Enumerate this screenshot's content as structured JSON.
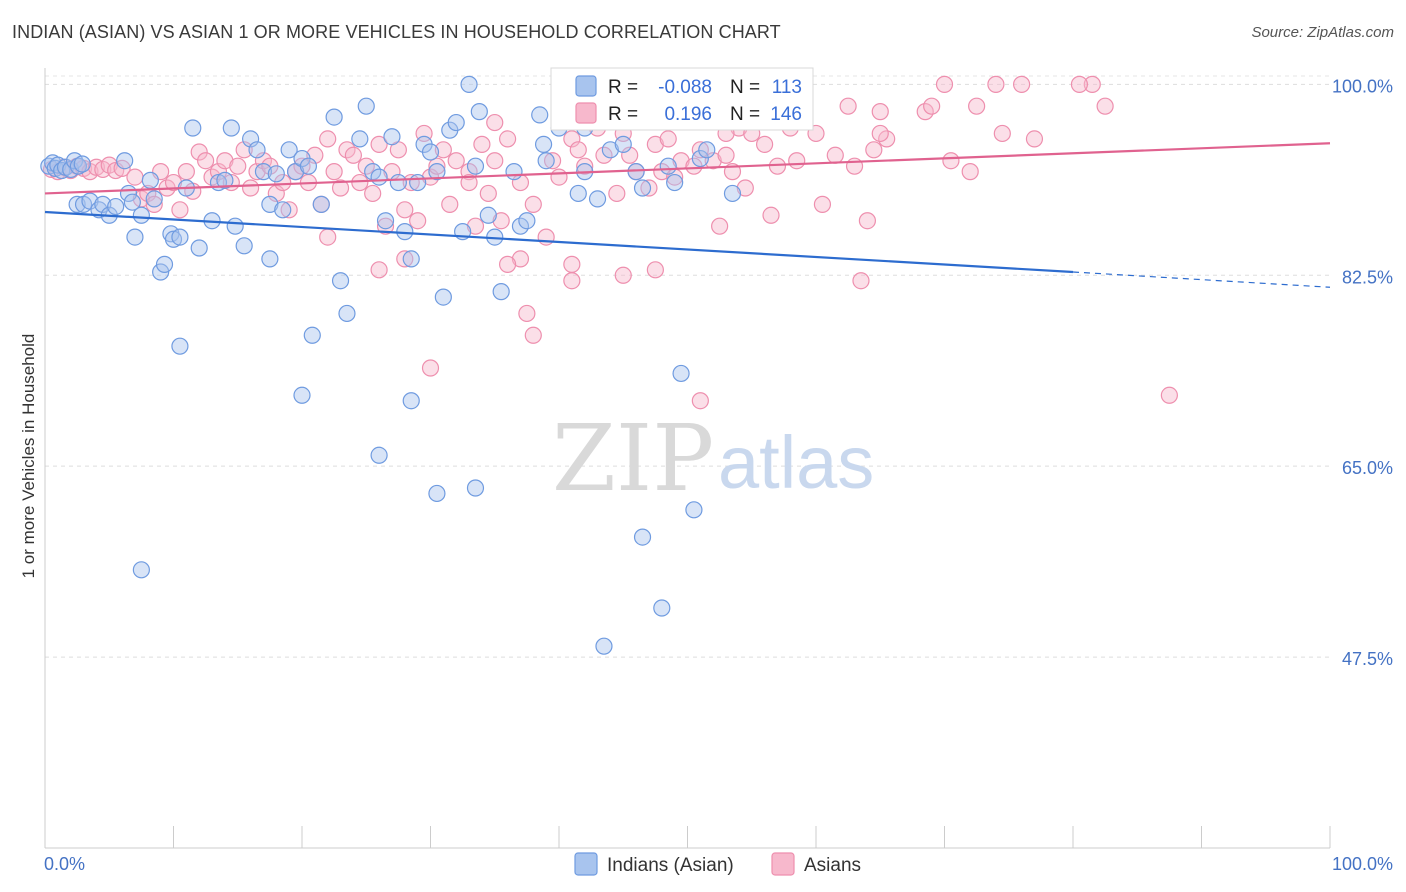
{
  "header": {
    "title": "INDIAN (ASIAN) VS ASIAN 1 OR MORE VEHICLES IN HOUSEHOLD CORRELATION CHART",
    "source": "Source: ZipAtlas.com"
  },
  "legend_box": {
    "r_label": "R =",
    "n_label": "N =",
    "blue": {
      "r": "-0.088",
      "n": "113"
    },
    "pink": {
      "r": "0.196",
      "n": "146"
    }
  },
  "watermark": {
    "zip": "ZIP",
    "atlas": "atlas"
  },
  "colors": {
    "blue_fill": "#a8c4ee",
    "blue_stroke": "#6f9be0",
    "blue_line": "#2d6ccf",
    "pink_fill": "#f7b8cc",
    "pink_stroke": "#ee8fae",
    "pink_line": "#e0628f",
    "grid": "#d8d8d8",
    "axis_label": "#4472c4"
  },
  "chart_data": {
    "type": "scatter",
    "title": "INDIAN (ASIAN) VS ASIAN 1 OR MORE VEHICLES IN HOUSEHOLD CORRELATION CHART",
    "xlabel": "",
    "ylabel": "1 or more Vehicles in Household",
    "xlim": [
      0,
      100
    ],
    "ylim": [
      30,
      101.5
    ],
    "x_tick_labels": [
      "0.0%",
      "100.0%"
    ],
    "y_ticks": [
      47.5,
      65.0,
      82.5,
      100.0
    ],
    "y_tick_labels": [
      "47.5%",
      "65.0%",
      "82.5%",
      "100.0%"
    ],
    "grid": true,
    "legend_position": "bottom-center",
    "series": [
      {
        "name": "Indians (Asian)",
        "color": "#a8c4ee",
        "trend": {
          "x0": 0,
          "y0": 88.3,
          "x1": 80,
          "y1": 82.8,
          "dashed_to_x": 100,
          "dashed_to_y": 81.4
        },
        "points": [
          [
            0.3,
            92.5
          ],
          [
            0.6,
            92.8
          ],
          [
            0.8,
            92.3
          ],
          [
            1.0,
            92.6
          ],
          [
            1.3,
            92.1
          ],
          [
            1.6,
            92.4
          ],
          [
            2.0,
            92.2
          ],
          [
            2.3,
            93.0
          ],
          [
            2.6,
            92.5
          ],
          [
            2.9,
            92.7
          ],
          [
            2.5,
            89.0
          ],
          [
            3.0,
            89.0
          ],
          [
            3.5,
            89.3
          ],
          [
            4.2,
            88.5
          ],
          [
            4.5,
            89.0
          ],
          [
            5.0,
            88.0
          ],
          [
            5.5,
            88.8
          ],
          [
            6.2,
            93.0
          ],
          [
            6.5,
            90.0
          ],
          [
            7.0,
            86.0
          ],
          [
            7.5,
            88.0
          ],
          [
            8.2,
            91.2
          ],
          [
            8.5,
            89.5
          ],
          [
            9.0,
            82.8
          ],
          [
            9.3,
            83.5
          ],
          [
            9.8,
            86.3
          ],
          [
            10.0,
            85.8
          ],
          [
            10.5,
            86.0
          ],
          [
            11.0,
            90.5
          ],
          [
            11.5,
            96.0
          ],
          [
            12.0,
            85.0
          ],
          [
            13.0,
            87.5
          ],
          [
            13.5,
            91.0
          ],
          [
            14.0,
            91.2
          ],
          [
            14.5,
            96.0
          ],
          [
            14.8,
            87.0
          ],
          [
            15.5,
            85.2
          ],
          [
            16.0,
            95.0
          ],
          [
            16.5,
            94.0
          ],
          [
            17.0,
            92.0
          ],
          [
            17.5,
            89.0
          ],
          [
            18.0,
            91.8
          ],
          [
            18.5,
            88.5
          ],
          [
            19.0,
            94.0
          ],
          [
            19.5,
            92.0
          ],
          [
            20.0,
            93.2
          ],
          [
            20.5,
            92.5
          ],
          [
            21.5,
            89.0
          ],
          [
            22.5,
            97.0
          ],
          [
            23.0,
            82.0
          ],
          [
            23.5,
            79.0
          ],
          [
            24.5,
            95.0
          ],
          [
            25.0,
            98.0
          ],
          [
            25.5,
            92.0
          ],
          [
            26.0,
            91.5
          ],
          [
            26.5,
            87.5
          ],
          [
            27.0,
            95.2
          ],
          [
            27.5,
            91.0
          ],
          [
            28.0,
            86.5
          ],
          [
            28.5,
            84.0
          ],
          [
            29.0,
            91.0
          ],
          [
            29.5,
            94.5
          ],
          [
            30.0,
            93.8
          ],
          [
            30.5,
            92.0
          ],
          [
            31.0,
            80.5
          ],
          [
            31.5,
            95.8
          ],
          [
            32.0,
            96.5
          ],
          [
            32.5,
            86.5
          ],
          [
            33.0,
            100.0
          ],
          [
            33.5,
            92.5
          ],
          [
            33.8,
            97.5
          ],
          [
            34.5,
            88.0
          ],
          [
            35.0,
            86.0
          ],
          [
            35.5,
            81.0
          ],
          [
            36.5,
            92.0
          ],
          [
            37.0,
            87.0
          ],
          [
            37.5,
            87.5
          ],
          [
            38.5,
            97.2
          ],
          [
            38.8,
            94.5
          ],
          [
            39.0,
            93.0
          ],
          [
            40.0,
            96.0
          ],
          [
            41.5,
            90.0
          ],
          [
            42.0,
            92.0
          ],
          [
            42.5,
            97.0
          ],
          [
            43.0,
            89.5
          ],
          [
            44.0,
            94.0
          ],
          [
            45.0,
            94.5
          ],
          [
            46.0,
            92.0
          ],
          [
            46.5,
            90.5
          ],
          [
            47.0,
            98.8
          ],
          [
            48.5,
            92.5
          ],
          [
            49.0,
            91.0
          ],
          [
            50.0,
            100.0
          ],
          [
            51.0,
            93.2
          ],
          [
            51.5,
            94.0
          ],
          [
            53.5,
            90.0
          ],
          [
            42.0,
            96.0
          ],
          [
            45.5,
            98.5
          ],
          [
            6.8,
            89.2
          ],
          [
            20.8,
            77.0
          ],
          [
            17.5,
            84.0
          ],
          [
            26.0,
            66.0
          ],
          [
            20.0,
            71.5
          ],
          [
            10.5,
            76.0
          ],
          [
            28.5,
            71.0
          ],
          [
            30.5,
            62.5
          ],
          [
            33.5,
            63.0
          ],
          [
            46.5,
            58.5
          ],
          [
            49.5,
            73.5
          ],
          [
            50.5,
            61.0
          ],
          [
            7.5,
            55.5
          ],
          [
            43.5,
            48.5
          ],
          [
            48.0,
            52.0
          ]
        ]
      },
      {
        "name": "Asians",
        "color": "#f7b8cc",
        "trend": {
          "x0": 0,
          "y0": 90.0,
          "x1": 100,
          "y1": 94.6
        },
        "points": [
          [
            0.5,
            92.2
          ],
          [
            1.0,
            92.0
          ],
          [
            1.5,
            92.4
          ],
          [
            2.0,
            92.1
          ],
          [
            2.5,
            92.5
          ],
          [
            3.0,
            92.3
          ],
          [
            3.5,
            92.0
          ],
          [
            4.0,
            92.4
          ],
          [
            4.5,
            92.2
          ],
          [
            5.0,
            92.6
          ],
          [
            5.5,
            92.1
          ],
          [
            6.0,
            92.3
          ],
          [
            7.0,
            91.5
          ],
          [
            7.5,
            89.5
          ],
          [
            8.0,
            90.0
          ],
          [
            8.5,
            89.0
          ],
          [
            9.0,
            92.0
          ],
          [
            9.5,
            90.5
          ],
          [
            10.0,
            91.0
          ],
          [
            10.5,
            88.5
          ],
          [
            11.0,
            92.0
          ],
          [
            11.5,
            90.2
          ],
          [
            12.0,
            93.8
          ],
          [
            12.5,
            93.0
          ],
          [
            13.0,
            91.5
          ],
          [
            13.5,
            92.0
          ],
          [
            14.0,
            93.0
          ],
          [
            14.5,
            91.0
          ],
          [
            15.0,
            92.5
          ],
          [
            15.5,
            94.0
          ],
          [
            16.0,
            90.5
          ],
          [
            16.5,
            92.0
          ],
          [
            17.0,
            93.0
          ],
          [
            17.5,
            92.5
          ],
          [
            18.0,
            90.0
          ],
          [
            18.5,
            91.0
          ],
          [
            19.0,
            88.5
          ],
          [
            19.5,
            92.0
          ],
          [
            20.0,
            92.5
          ],
          [
            20.5,
            91.0
          ],
          [
            21.0,
            93.5
          ],
          [
            21.5,
            89.0
          ],
          [
            22.0,
            95.0
          ],
          [
            22.5,
            92.0
          ],
          [
            23.0,
            90.5
          ],
          [
            23.5,
            94.0
          ],
          [
            24.0,
            93.5
          ],
          [
            24.5,
            91.0
          ],
          [
            25.0,
            92.5
          ],
          [
            25.5,
            90.0
          ],
          [
            26.0,
            94.5
          ],
          [
            26.5,
            87.0
          ],
          [
            27.0,
            92.0
          ],
          [
            27.5,
            94.0
          ],
          [
            28.0,
            88.5
          ],
          [
            28.5,
            91.0
          ],
          [
            29.0,
            87.5
          ],
          [
            29.5,
            95.5
          ],
          [
            30.0,
            91.5
          ],
          [
            30.5,
            92.5
          ],
          [
            31.0,
            94.0
          ],
          [
            31.5,
            89.0
          ],
          [
            32.0,
            93.0
          ],
          [
            33.0,
            92.0
          ],
          [
            33.5,
            87.0
          ],
          [
            34.0,
            94.5
          ],
          [
            34.5,
            90.0
          ],
          [
            35.0,
            93.0
          ],
          [
            35.5,
            87.5
          ],
          [
            36.0,
            95.0
          ],
          [
            37.0,
            91.0
          ],
          [
            38.0,
            89.0
          ],
          [
            39.0,
            86.0
          ],
          [
            39.5,
            93.0
          ],
          [
            40.0,
            91.5
          ],
          [
            41.0,
            95.0
          ],
          [
            41.5,
            94.0
          ],
          [
            42.0,
            92.5
          ],
          [
            43.0,
            96.0
          ],
          [
            43.5,
            93.5
          ],
          [
            44.5,
            90.0
          ],
          [
            45.0,
            95.5
          ],
          [
            45.5,
            93.5
          ],
          [
            46.0,
            92.0
          ],
          [
            47.0,
            90.5
          ],
          [
            47.5,
            94.5
          ],
          [
            48.0,
            92.0
          ],
          [
            48.5,
            95.0
          ],
          [
            49.0,
            91.5
          ],
          [
            49.5,
            93.0
          ],
          [
            50.5,
            92.5
          ],
          [
            51.0,
            94.0
          ],
          [
            52.0,
            93.0
          ],
          [
            52.5,
            87.0
          ],
          [
            53.0,
            93.5
          ],
          [
            53.5,
            92.0
          ],
          [
            54.0,
            96.0
          ],
          [
            54.5,
            90.5
          ],
          [
            55.0,
            95.5
          ],
          [
            56.0,
            94.5
          ],
          [
            56.5,
            88.0
          ],
          [
            57.0,
            92.5
          ],
          [
            58.0,
            96.0
          ],
          [
            58.5,
            93.0
          ],
          [
            60.0,
            95.5
          ],
          [
            60.5,
            89.0
          ],
          [
            61.5,
            93.5
          ],
          [
            62.5,
            98.0
          ],
          [
            63.0,
            92.5
          ],
          [
            64.0,
            87.5
          ],
          [
            64.5,
            94.0
          ],
          [
            65.0,
            97.5
          ],
          [
            65.5,
            95.0
          ],
          [
            68.5,
            97.5
          ],
          [
            70.0,
            100.0
          ],
          [
            72.5,
            98.0
          ],
          [
            74.0,
            100.0
          ],
          [
            76.0,
            100.0
          ],
          [
            81.5,
            100.0
          ],
          [
            82.5,
            98.0
          ],
          [
            63.5,
            82.0
          ],
          [
            69.0,
            98.0
          ],
          [
            65.0,
            95.5
          ],
          [
            70.5,
            93.0
          ],
          [
            72.0,
            92.0
          ],
          [
            74.5,
            95.5
          ],
          [
            77.0,
            95.0
          ],
          [
            80.5,
            100.0
          ],
          [
            87.5,
            71.5
          ],
          [
            51.0,
            71.0
          ],
          [
            41.0,
            83.5
          ],
          [
            45.0,
            82.5
          ],
          [
            47.5,
            83.0
          ],
          [
            37.5,
            79.0
          ],
          [
            37.0,
            84.0
          ],
          [
            36.0,
            83.5
          ],
          [
            38.0,
            77.0
          ],
          [
            30.0,
            74.0
          ],
          [
            26.0,
            83.0
          ],
          [
            28.0,
            84.0
          ],
          [
            33.0,
            91.0
          ],
          [
            41.0,
            82.0
          ],
          [
            22.0,
            86.0
          ],
          [
            53.0,
            95.5
          ],
          [
            35.0,
            96.5
          ],
          [
            55.5,
            98.5
          ]
        ]
      }
    ]
  }
}
